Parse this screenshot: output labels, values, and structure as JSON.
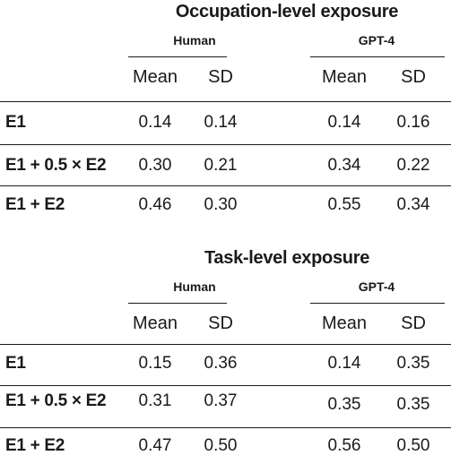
{
  "tables": [
    {
      "title": "Occupation-level exposure",
      "groups": [
        "Human",
        "GPT-4"
      ],
      "columns": [
        "Mean",
        "SD",
        "Mean",
        "SD"
      ],
      "rows": [
        {
          "label": "E1",
          "values": [
            "0.14",
            "0.14",
            "0.14",
            "0.16"
          ]
        },
        {
          "label": "E1 + 0.5 × E2",
          "values": [
            "0.30",
            "0.21",
            "0.34",
            "0.22"
          ]
        },
        {
          "label": "E1 + E2",
          "values": [
            "0.46",
            "0.30",
            "0.55",
            "0.34"
          ]
        }
      ]
    },
    {
      "title": "Task-level exposure",
      "groups": [
        "Human",
        "GPT-4"
      ],
      "columns": [
        "Mean",
        "SD",
        "Mean",
        "SD"
      ],
      "rows": [
        {
          "label": "E1",
          "values": [
            "0.15",
            "0.36",
            "0.14",
            "0.35"
          ]
        },
        {
          "label": "E1 + 0.5 × E2",
          "values": [
            "0.31",
            "0.37",
            "0.35",
            "0.35"
          ]
        },
        {
          "label": "E1 + E2",
          "values": [
            "0.47",
            "0.50",
            "0.56",
            "0.50"
          ]
        }
      ]
    }
  ]
}
